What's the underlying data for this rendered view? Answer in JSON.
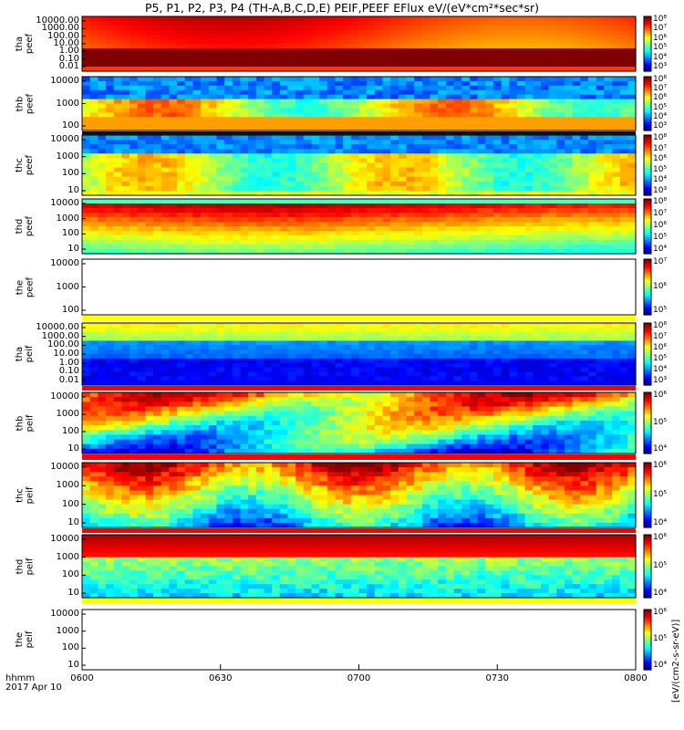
{
  "title": "P5, P1, P2, P3, P4 (TH-A,B,C,D,E) PEIF,PEEF EFlux eV/(eV*cm²*sec*sr)",
  "x_axis": {
    "ticks": [
      "0600",
      "0630",
      "0700",
      "0730",
      "0800"
    ],
    "unit_label": "hhmm",
    "date_label": "2017 Apr 10"
  },
  "colorbar_label": "[eV/(cm2-s-sr-eV)]",
  "colors": {
    "background": "#ffffff",
    "separator_yellow": "#ffff00",
    "separator_red": "#ff0000",
    "saturated": "#b00000"
  },
  "chart_data": [
    {
      "type": "heatmap",
      "panel": "tha peef",
      "ylabel": [
        "tha",
        "peef"
      ],
      "yticks": [
        "10000.00",
        "1000.00",
        "100.00",
        "10.00",
        "1.00",
        "0.10",
        "0.01"
      ],
      "colorbar_ticks": [
        "10⁸",
        "10⁷",
        "10⁶",
        "10⁵",
        "10⁴",
        "10³"
      ],
      "description_of_values": "high flux throughout; saturated band at low energy"
    },
    {
      "type": "heatmap",
      "panel": "thb peef",
      "ylabel": [
        "thb",
        "peef"
      ],
      "yticks": [
        "10000",
        "1000",
        "100"
      ],
      "colorbar_ticks": [
        "10⁸",
        "10⁷",
        "10⁶",
        "10⁵",
        "10⁴",
        "10³"
      ]
    },
    {
      "type": "heatmap",
      "panel": "thc peef",
      "ylabel": [
        "thc",
        "peef"
      ],
      "yticks": [
        "10000",
        "1000",
        "100",
        "10"
      ],
      "colorbar_ticks": [
        "10⁸",
        "10⁷",
        "10⁶",
        "10⁵",
        "10⁴",
        "10³"
      ]
    },
    {
      "type": "heatmap",
      "panel": "thd peef",
      "ylabel": [
        "thd",
        "peef"
      ],
      "yticks": [
        "10000",
        "1000",
        "100",
        "10"
      ],
      "colorbar_ticks": [
        "10⁸",
        "10⁷",
        "10⁶",
        "10⁵",
        "10⁴"
      ]
    },
    {
      "type": "heatmap",
      "panel": "the peef",
      "ylabel": [
        "the",
        "peef"
      ],
      "yticks": [
        "10000",
        "1000",
        "100"
      ],
      "colorbar_ticks": [
        "10⁷",
        "10⁶",
        "10⁵"
      ],
      "empty": true
    },
    {
      "type": "heatmap",
      "panel": "tha peif",
      "ylabel": [
        "tha",
        "peif"
      ],
      "yticks": [
        "10000.00",
        "1000.00",
        "100.00",
        "10.00",
        "1.00",
        "0.10",
        "0.01"
      ],
      "colorbar_ticks": [
        "10⁸",
        "10⁷",
        "10⁶",
        "10⁵",
        "10⁴",
        "10³"
      ]
    },
    {
      "type": "heatmap",
      "panel": "thb peif",
      "ylabel": [
        "thb",
        "peif"
      ],
      "yticks": [
        "10000",
        "1000",
        "100",
        "10"
      ],
      "colorbar_ticks": [
        "10⁶",
        "10⁵",
        "10⁴"
      ]
    },
    {
      "type": "heatmap",
      "panel": "thc peif",
      "ylabel": [
        "thc",
        "peif"
      ],
      "yticks": [
        "10000",
        "1000",
        "100",
        "10"
      ],
      "colorbar_ticks": [
        "10⁶",
        "10⁵",
        "10⁴"
      ]
    },
    {
      "type": "heatmap",
      "panel": "thd peif",
      "ylabel": [
        "thd",
        "peif"
      ],
      "yticks": [
        "10000",
        "1000",
        "100",
        "10"
      ],
      "colorbar_ticks": [
        "10⁶",
        "10⁵",
        "10⁴"
      ]
    },
    {
      "type": "heatmap",
      "panel": "the peif",
      "ylabel": [
        "the",
        "peif"
      ],
      "yticks": [
        "10000",
        "1000",
        "100",
        "10"
      ],
      "colorbar_ticks": [
        "10⁶",
        "10⁵",
        "10⁴"
      ],
      "empty": true
    }
  ]
}
